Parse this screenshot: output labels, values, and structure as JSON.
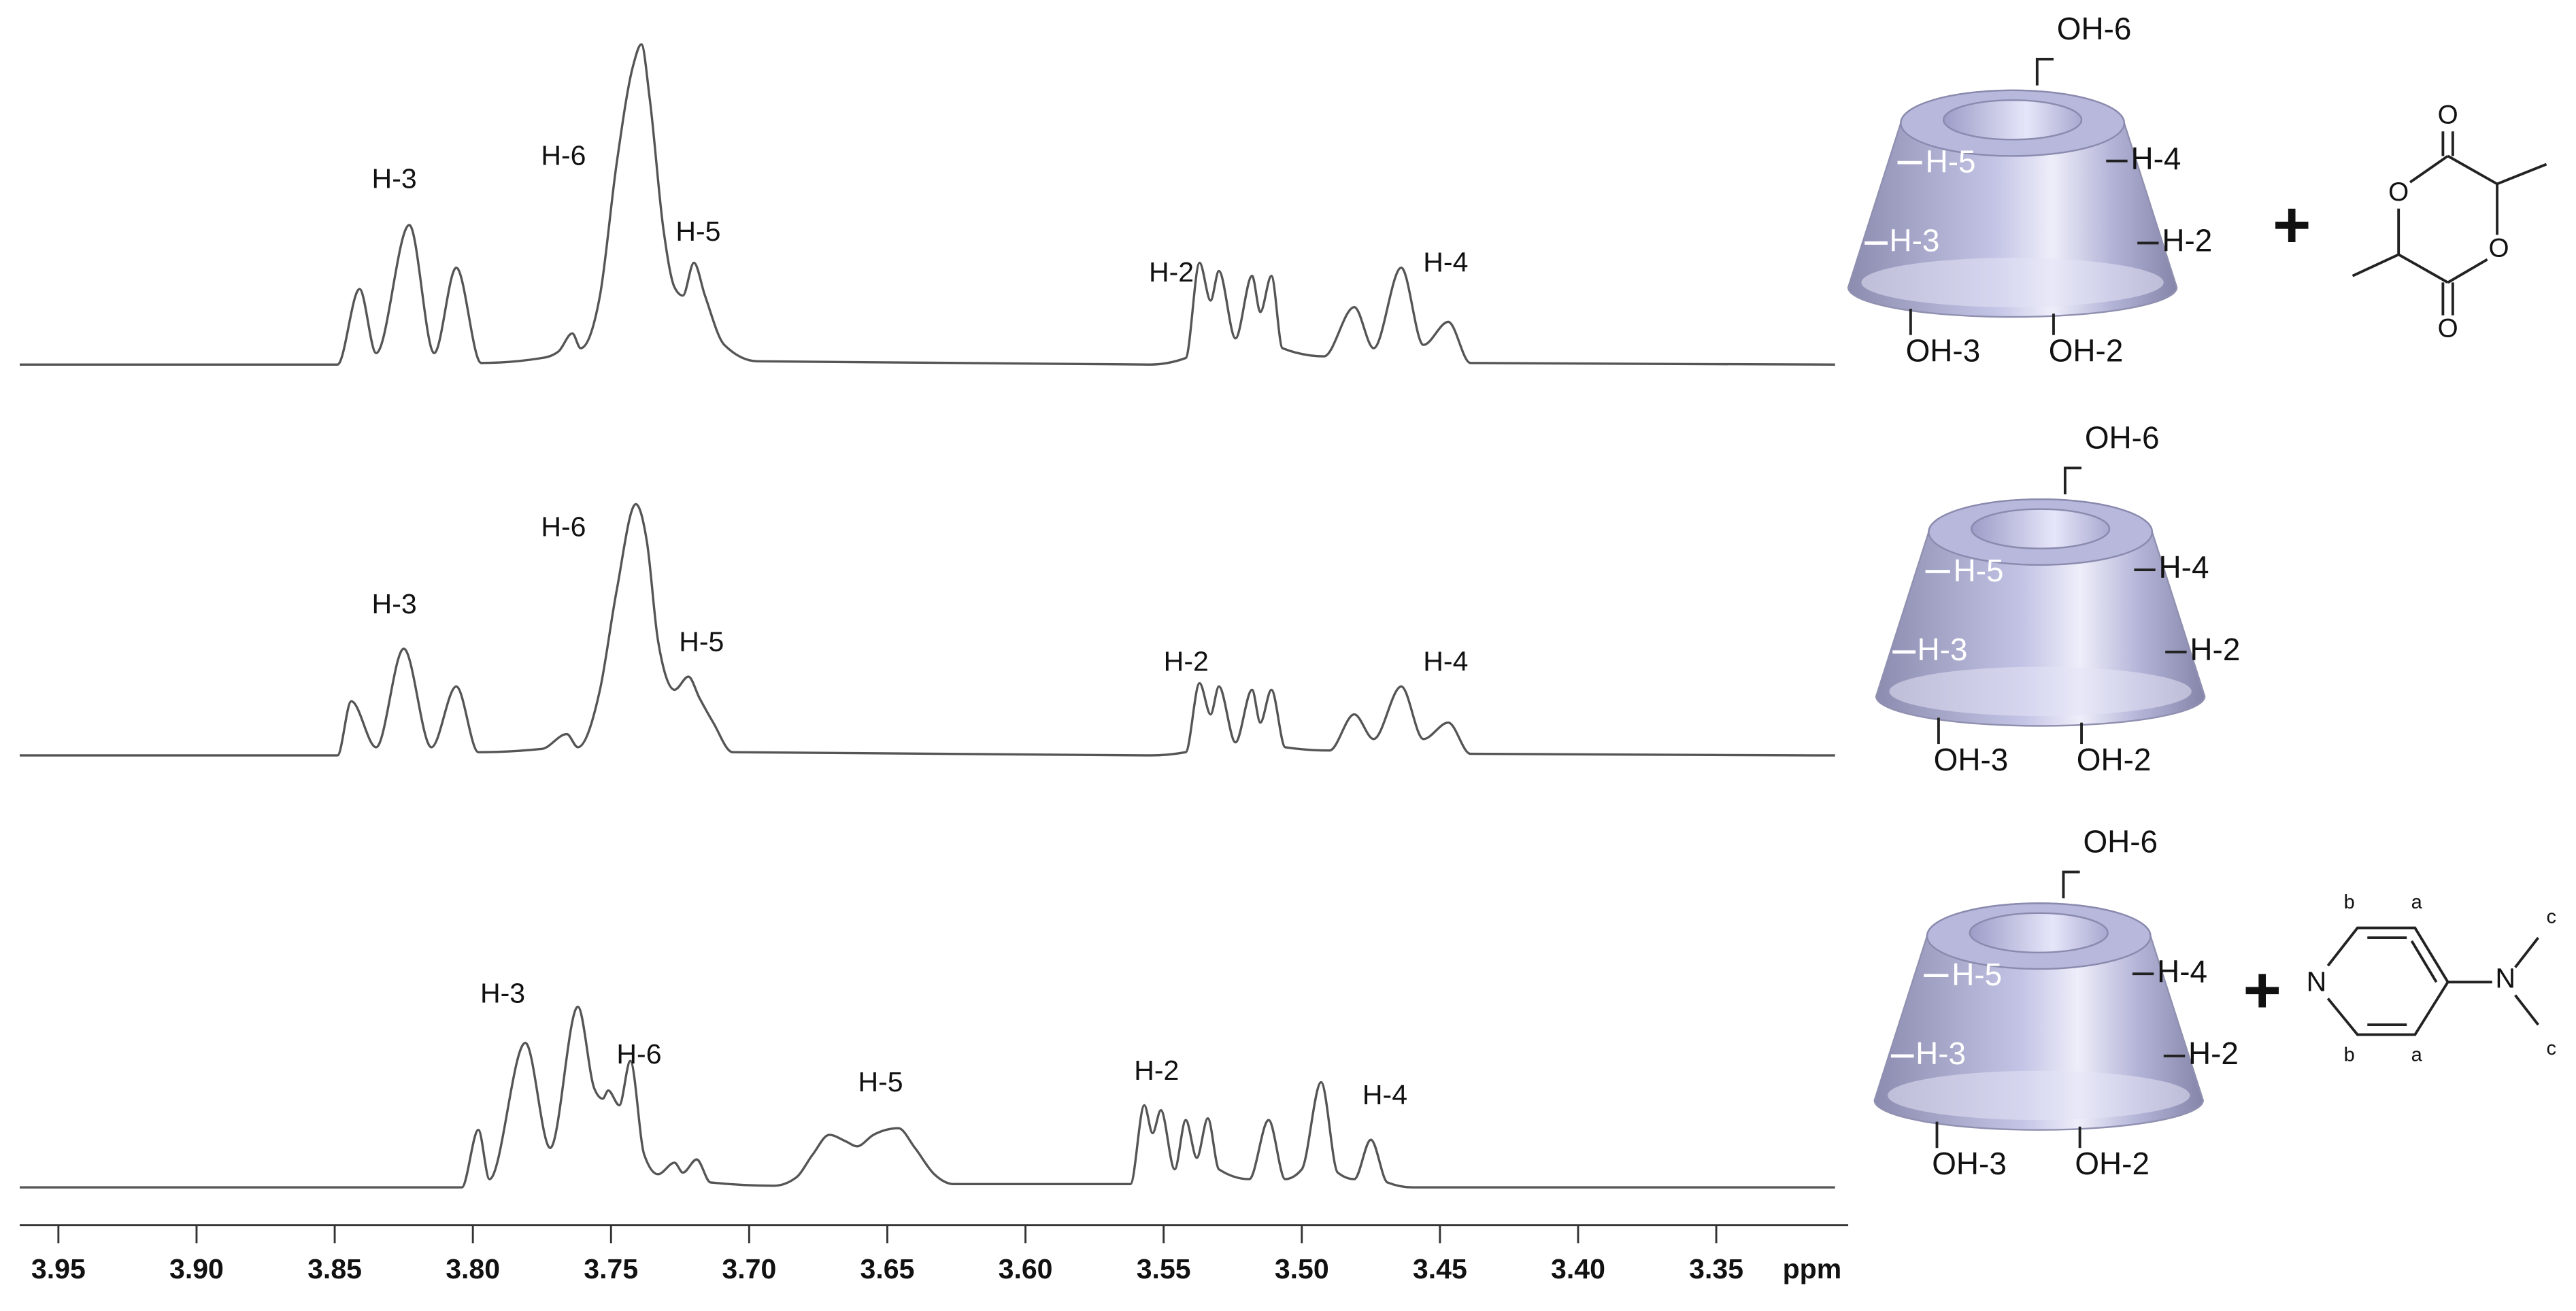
{
  "chart_data": [
    {
      "type": "line",
      "color": "#555555",
      "xlim": [
        3.964,
        3.307
      ],
      "ylim": [
        0,
        100
      ],
      "annotations": [
        "H-3",
        "H-6",
        "H-5",
        "H-2",
        "H-4"
      ],
      "x": [
        3.964,
        3.849,
        3.841,
        3.835,
        3.823,
        3.814,
        3.806,
        3.797,
        3.775,
        3.769,
        3.764,
        3.761,
        3.754,
        3.748,
        3.742,
        3.739,
        3.736,
        3.731,
        3.727,
        3.724,
        3.72,
        3.716,
        3.709,
        3.697,
        3.555,
        3.542,
        3.537,
        3.533,
        3.53,
        3.524,
        3.518,
        3.515,
        3.511,
        3.507,
        3.492,
        3.481,
        3.474,
        3.464,
        3.456,
        3.447,
        3.439,
        3.307
      ],
      "values": [
        0,
        0,
        23,
        3.5,
        42.5,
        3.5,
        29.5,
        0.5,
        2,
        4,
        9.5,
        5,
        21,
        61,
        91,
        97.5,
        81,
        41,
        23.5,
        21,
        31,
        21,
        6,
        1,
        0,
        2,
        31,
        19.5,
        28.5,
        8,
        27,
        16,
        27,
        5,
        2.5,
        17.5,
        5,
        29.5,
        6,
        13,
        0.5,
        0
      ]
    },
    {
      "type": "line",
      "color": "#555555",
      "xlim": [
        3.964,
        3.307
      ],
      "ylim": [
        0,
        100
      ],
      "annotations": [
        "H-3",
        "H-6",
        "H-5",
        "H-2",
        "H-4"
      ],
      "x": [
        3.964,
        3.849,
        3.844,
        3.835,
        3.825,
        3.815,
        3.806,
        3.798,
        3.775,
        3.766,
        3.762,
        3.754,
        3.748,
        3.741,
        3.737,
        3.733,
        3.727,
        3.722,
        3.718,
        3.713,
        3.706,
        3.555,
        3.542,
        3.537,
        3.533,
        3.53,
        3.524,
        3.518,
        3.515,
        3.511,
        3.506,
        3.49,
        3.481,
        3.474,
        3.464,
        3.456,
        3.447,
        3.439,
        3.307
      ],
      "values": [
        0,
        0,
        16.5,
        2.5,
        32.5,
        2.5,
        21,
        1,
        2,
        6.5,
        2.5,
        20,
        50,
        76.5,
        65,
        35,
        20,
        24,
        17.5,
        10,
        1,
        0,
        1,
        22,
        12.5,
        21,
        4,
        20,
        10,
        20,
        2.5,
        1.5,
        12.5,
        5,
        21,
        5,
        10,
        0.5,
        0
      ]
    },
    {
      "type": "line",
      "color": "#555555",
      "xlim": [
        3.964,
        3.307
      ],
      "ylim": [
        0,
        100
      ],
      "annotations": [
        "H-3",
        "H-6",
        "H-5",
        "H-2",
        "H-4"
      ],
      "xlabel": "ppm",
      "xticks": [
        3.95,
        {
          "value": 3.9,
          "label": "3.90"
        },
        3.85,
        {
          "value": 3.8,
          "label": "3.80"
        },
        3.75,
        {
          "value": 3.7,
          "label": "3.70"
        },
        3.65,
        {
          "value": 3.6,
          "label": "3.60"
        },
        3.55,
        {
          "value": 3.5,
          "label": "3.50"
        },
        3.45,
        {
          "value": 3.4,
          "label": "3.40"
        },
        3.35
      ],
      "x": [
        3.964,
        3.804,
        3.798,
        3.794,
        3.781,
        3.772,
        3.762,
        3.756,
        3.753,
        3.751,
        3.747,
        3.743,
        3.738,
        3.733,
        3.727,
        3.724,
        3.719,
        3.714,
        3.691,
        3.683,
        3.677,
        3.671,
        3.665,
        3.661,
        3.655,
        3.646,
        3.64,
        3.633,
        3.626,
        3.562,
        3.557,
        3.554,
        3.551,
        3.546,
        3.542,
        3.538,
        3.534,
        3.53,
        3.519,
        3.512,
        3.506,
        3.5,
        3.493,
        3.487,
        3.481,
        3.475,
        3.469,
        3.46,
        3.307
      ],
      "values": [
        0,
        0,
        17.5,
        2.5,
        44,
        12,
        55,
        30,
        27,
        29.5,
        25,
        38.5,
        10,
        4,
        7.5,
        4.5,
        8.5,
        1.5,
        0.5,
        3,
        10,
        16,
        14,
        12.5,
        16,
        18,
        12,
        4,
        1,
        1,
        25,
        16.5,
        23.5,
        5.5,
        20.5,
        9,
        21,
        5.5,
        2.5,
        20.5,
        2.5,
        5.5,
        32,
        4.5,
        2.5,
        14.5,
        1.5,
        0,
        0
      ]
    }
  ],
  "structures": {
    "cyclodextrins": [
      {
        "labels": [
          "OH-6",
          "H-5",
          "H-4",
          "H-3",
          "H-2",
          "OH-3",
          "OH-2"
        ]
      },
      {
        "labels": [
          "OH-6",
          "H-5",
          "H-4",
          "H-3",
          "H-2",
          "OH-3",
          "OH-2"
        ]
      },
      {
        "labels": [
          "OH-6",
          "H-5",
          "H-4",
          "H-3",
          "H-2",
          "OH-3",
          "OH-2"
        ]
      }
    ],
    "plus_signs": [
      "+",
      "+"
    ],
    "lactide": {
      "atoms": [
        "O",
        "O",
        "O",
        "O"
      ]
    },
    "dmap": {
      "atoms": [
        "N",
        "N",
        "b",
        "a",
        "b",
        "a",
        "c",
        "c"
      ]
    }
  }
}
